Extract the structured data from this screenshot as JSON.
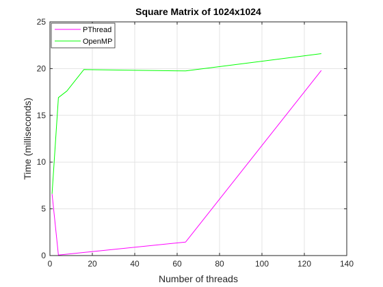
{
  "chart_data": {
    "type": "line",
    "title": "Square Matrix of 1024x1024",
    "xlabel": "Number of threads",
    "ylabel": "Time (milliseconds)",
    "xlim": [
      0,
      140
    ],
    "ylim": [
      0,
      25
    ],
    "xticks": [
      0,
      20,
      40,
      60,
      80,
      100,
      120,
      140
    ],
    "yticks": [
      0,
      5,
      10,
      15,
      20,
      25
    ],
    "grid": true,
    "legend_position": "top-left",
    "series": [
      {
        "name": "PThread",
        "color": "#ff00ff",
        "points": [
          [
            1,
            6.6
          ],
          [
            4,
            0.05
          ],
          [
            64,
            1.45
          ],
          [
            128,
            19.8
          ]
        ]
      },
      {
        "name": "OpenMP",
        "color": "#00ff00",
        "points": [
          [
            1,
            6.6
          ],
          [
            4,
            16.9
          ],
          [
            8,
            17.6
          ],
          [
            16,
            19.9
          ],
          [
            64,
            19.75
          ],
          [
            128,
            21.6
          ]
        ]
      }
    ]
  }
}
